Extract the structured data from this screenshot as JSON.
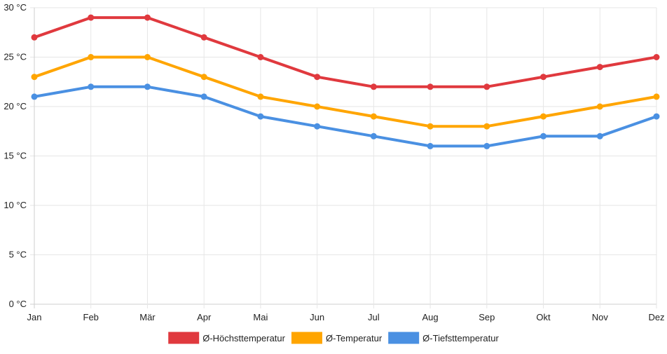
{
  "chart_data": {
    "type": "line",
    "categories": [
      "Jan",
      "Feb",
      "Mär",
      "Apr",
      "Mai",
      "Jun",
      "Jul",
      "Aug",
      "Sep",
      "Okt",
      "Nov",
      "Dez"
    ],
    "y_ticks": [
      "0 °C",
      "5 °C",
      "10 °C",
      "15 °C",
      "20 °C",
      "25 °C",
      "30 °C"
    ],
    "ylim": [
      0,
      30
    ],
    "y_step": 5,
    "grid": true,
    "legend_position": "bottom",
    "series": [
      {
        "name": "Ø-Höchsttemperatur",
        "color": "#e0393e",
        "values": [
          27,
          29,
          29,
          27,
          25,
          23,
          22,
          22,
          22,
          23,
          24,
          25
        ]
      },
      {
        "name": "Ø-Temperatur",
        "color": "#ffa500",
        "values": [
          23,
          25,
          25,
          23,
          21,
          20,
          19,
          18,
          18,
          19,
          20,
          21
        ]
      },
      {
        "name": "Ø-Tiefsttemperatur",
        "color": "#4a90e2",
        "values": [
          21,
          22,
          22,
          21,
          19,
          18,
          17,
          16,
          16,
          17,
          17,
          19
        ]
      }
    ]
  }
}
